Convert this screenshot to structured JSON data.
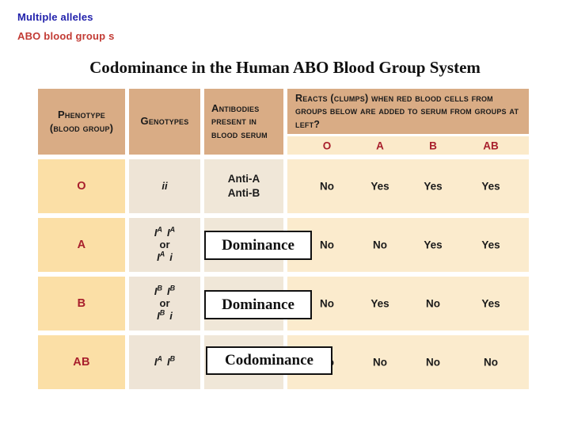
{
  "labels": {
    "topic": "Multiple alleles",
    "subtopic": "ABO blood group s"
  },
  "title": "Codominance in the Human ABO Blood Group System",
  "colors": {
    "header_tan": "#d9ac85",
    "subheader_cream": "#fbeaca",
    "phenotype_peach": "#fbdfa6",
    "genotype_beige": "#eee4d6",
    "reaction_cream": "#fbebcd",
    "accent_red": "#a81f2c",
    "topic_blue": "#2222ac",
    "subtopic_red": "#c23b34"
  },
  "table": {
    "headers": {
      "phenotype_l1": "Phenotype",
      "phenotype_l2": "(blood group)",
      "genotypes": "Genotypes",
      "antibodies_l1": "Antibodies",
      "antibodies_l2": "present in",
      "antibodies_l3": "blood serum",
      "reacts": "Reacts (clumps) when red blood cells from groups below are added to serum from groups at left?"
    },
    "group_columns": [
      "O",
      "A",
      "B",
      "AB"
    ],
    "rows": [
      {
        "phenotype": "O",
        "geno": {
          "l1": [
            "i",
            "i"
          ]
        },
        "antibodies": [
          "Anti-A",
          "Anti-B"
        ],
        "reactions": [
          "No",
          "Yes",
          "Yes",
          "Yes"
        ]
      },
      {
        "phenotype": "A",
        "geno": {
          "l1": [
            "I",
            "A",
            "I",
            "A"
          ],
          "mid": "or",
          "l3": [
            "I",
            "A",
            "i"
          ]
        },
        "overlay": "Dominance",
        "reactions": [
          "No",
          "No",
          "Yes",
          "Yes"
        ]
      },
      {
        "phenotype": "B",
        "geno": {
          "l1": [
            "I",
            "B",
            "I",
            "B"
          ],
          "mid": "or",
          "l3": [
            "I",
            "B",
            "i"
          ]
        },
        "overlay": "Dominance",
        "reactions": [
          "No",
          "Yes",
          "No",
          "Yes"
        ]
      },
      {
        "phenotype": "AB",
        "geno": {
          "l1": [
            "I",
            "A",
            "I",
            "B"
          ]
        },
        "overlay": "Codominance",
        "reactions": [
          "No",
          "No",
          "No",
          "No"
        ]
      }
    ]
  }
}
